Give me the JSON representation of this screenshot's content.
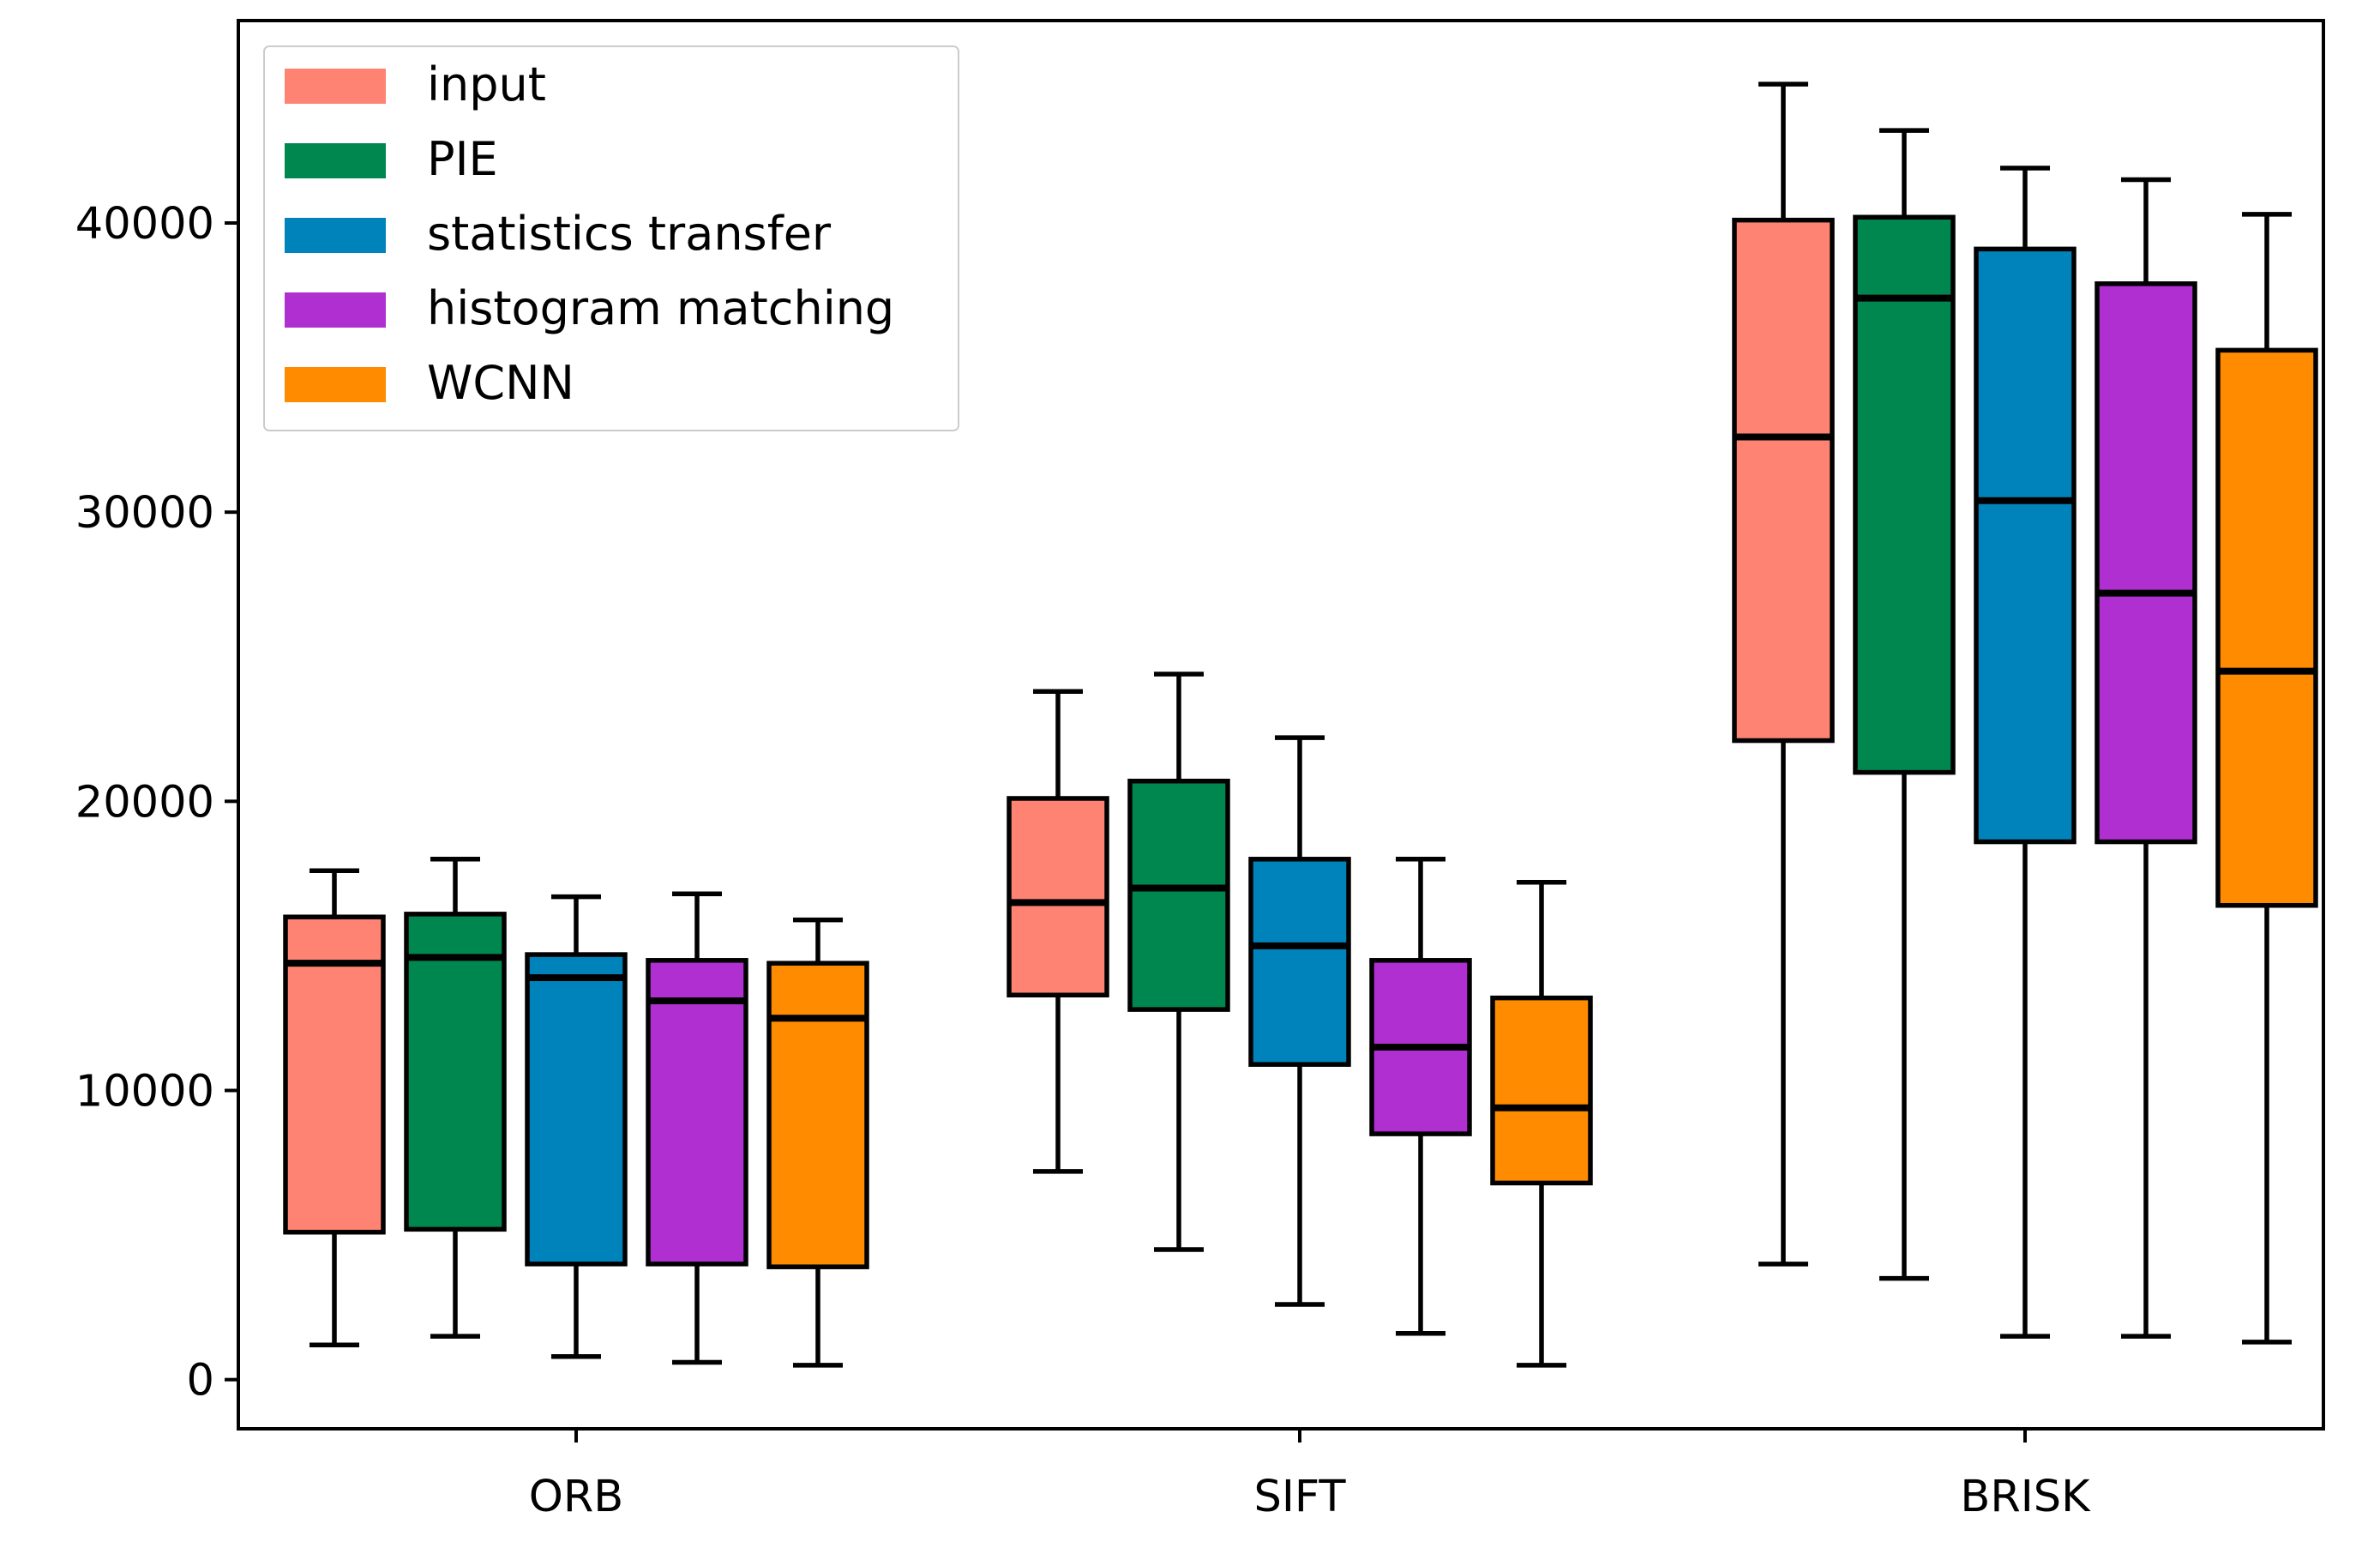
{
  "chart_data": {
    "type": "box",
    "title": "",
    "xlabel": "",
    "ylabel": "",
    "categories": [
      "ORB",
      "SIFT",
      "BRISK"
    ],
    "ylim": [
      -1700,
      47000
    ],
    "yticks": [
      0,
      10000,
      20000,
      30000,
      40000
    ],
    "ytick_labels": [
      "0",
      "10000",
      "20000",
      "30000",
      "40000"
    ],
    "grid": false,
    "legend_position": "top-left",
    "series": [
      {
        "name": "input",
        "color": "#FF8373",
        "boxes": [
          {
            "whisker_low": 1200,
            "q1": 5100,
            "median": 14400,
            "q3": 16000,
            "whisker_high": 17600
          },
          {
            "whisker_low": 7200,
            "q1": 13300,
            "median": 16500,
            "q3": 20100,
            "whisker_high": 23800
          },
          {
            "whisker_low": 4000,
            "q1": 22100,
            "median": 32600,
            "q3": 40100,
            "whisker_high": 44800
          }
        ]
      },
      {
        "name": "PIE",
        "color": "#00874F",
        "boxes": [
          {
            "whisker_low": 1500,
            "q1": 5200,
            "median": 14600,
            "q3": 16100,
            "whisker_high": 18000
          },
          {
            "whisker_low": 4500,
            "q1": 12800,
            "median": 17000,
            "q3": 20700,
            "whisker_high": 24400
          },
          {
            "whisker_low": 3500,
            "q1": 21000,
            "median": 37400,
            "q3": 40200,
            "whisker_high": 43200
          }
        ]
      },
      {
        "name": "statistics transfer",
        "color": "#0083BA",
        "boxes": [
          {
            "whisker_low": 800,
            "q1": 4000,
            "median": 13900,
            "q3": 14700,
            "whisker_high": 16700
          },
          {
            "whisker_low": 2600,
            "q1": 10900,
            "median": 15000,
            "q3": 18000,
            "whisker_high": 22200
          },
          {
            "whisker_low": 1500,
            "q1": 18600,
            "median": 30400,
            "q3": 39100,
            "whisker_high": 41900
          }
        ]
      },
      {
        "name": "histogram matching",
        "color": "#B02FD1",
        "boxes": [
          {
            "whisker_low": 600,
            "q1": 4000,
            "median": 13100,
            "q3": 14500,
            "whisker_high": 16800
          },
          {
            "whisker_low": 1600,
            "q1": 8500,
            "median": 11500,
            "q3": 14500,
            "whisker_high": 18000
          },
          {
            "whisker_low": 1500,
            "q1": 18600,
            "median": 27200,
            "q3": 37900,
            "whisker_high": 41500
          }
        ]
      },
      {
        "name": "WCNN",
        "color": "#FF8B00",
        "boxes": [
          {
            "whisker_low": 500,
            "q1": 3900,
            "median": 12500,
            "q3": 14400,
            "whisker_high": 15900
          },
          {
            "whisker_low": 500,
            "q1": 6800,
            "median": 9400,
            "q3": 13200,
            "whisker_high": 17200
          },
          {
            "whisker_low": 1300,
            "q1": 16400,
            "median": 24500,
            "q3": 35600,
            "whisker_high": 40300
          }
        ]
      }
    ]
  }
}
